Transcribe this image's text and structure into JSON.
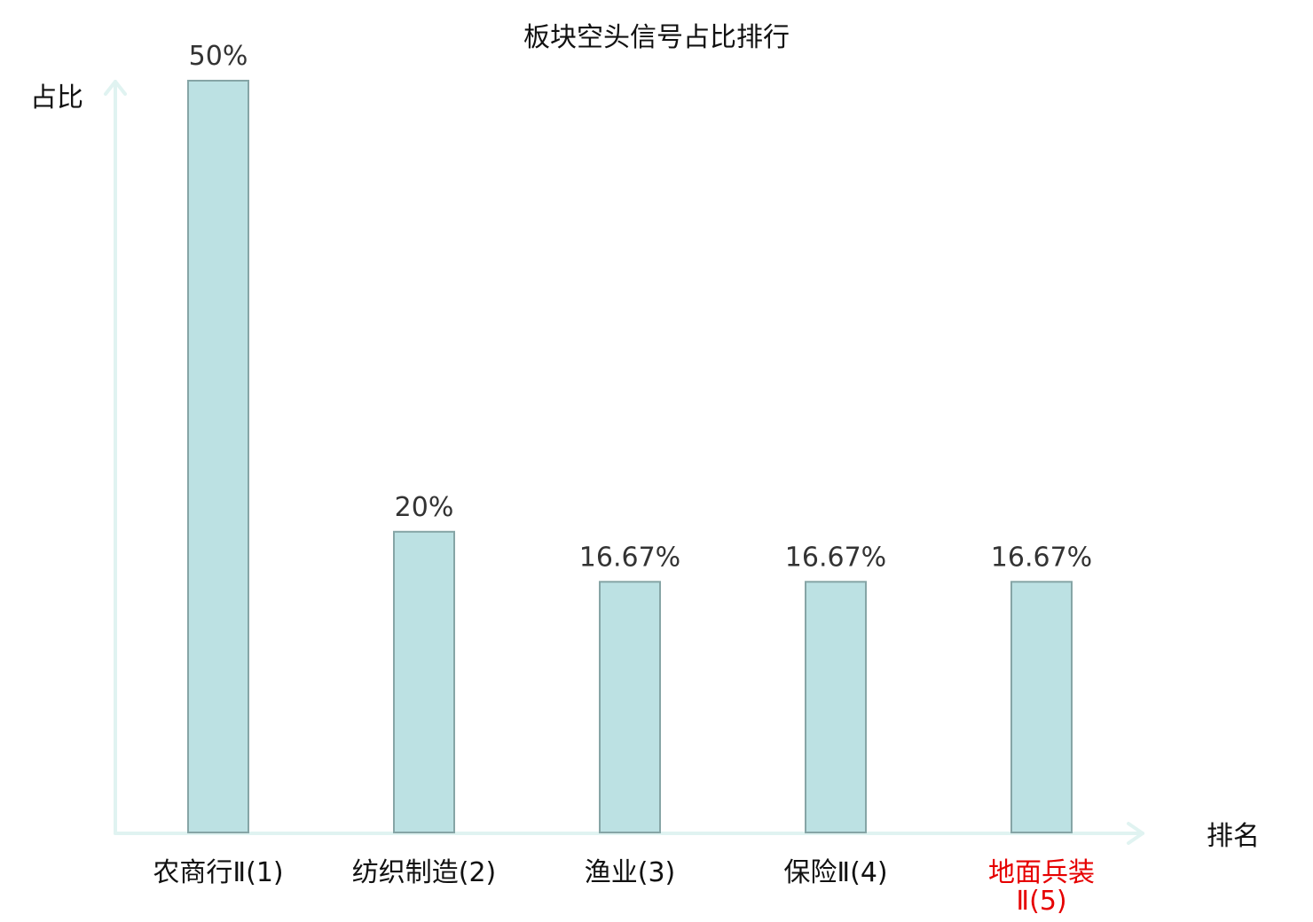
{
  "chart_data": {
    "type": "bar",
    "title": "板块空头信号占比排行",
    "xlabel": "排名",
    "ylabel": "占比",
    "categories": [
      [
        "农商行Ⅱ(1)"
      ],
      [
        "纺织制造(2)"
      ],
      [
        "渔业(3)"
      ],
      [
        "保险Ⅱ(4)"
      ],
      [
        "地面兵装",
        "Ⅱ(5)"
      ]
    ],
    "values": [
      50,
      20,
      16.67,
      16.67,
      16.67
    ],
    "value_labels": [
      "50%",
      "20%",
      "16.67%",
      "16.67%",
      "16.67%"
    ],
    "ylim": [
      0,
      50
    ],
    "grid": false,
    "colors": {
      "bar_fill": "#bce1e3",
      "bar_stroke": "#86a5a6",
      "axis": "#e0f3f1",
      "category_text": "#111111",
      "highlight_text": "#e60000",
      "value_text": "#333333"
    },
    "highlight_index": 4
  }
}
